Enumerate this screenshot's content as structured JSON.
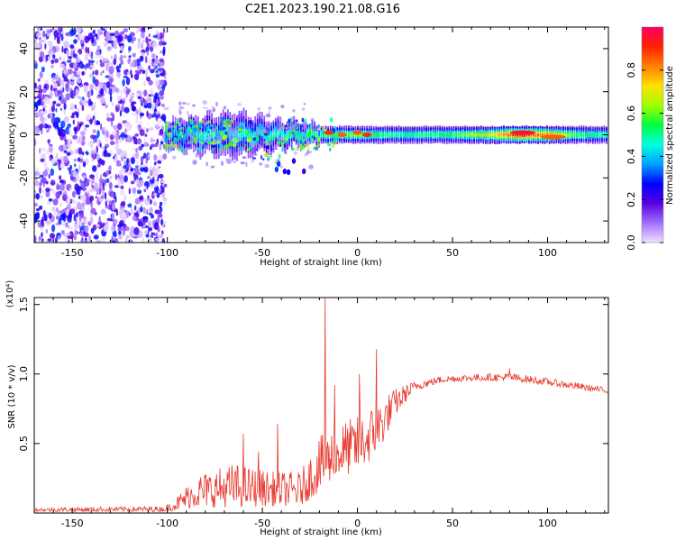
{
  "title": "C2E1.2023.190.21.08.G16",
  "chart_data": [
    {
      "type": "heatmap",
      "name": "spectrogram",
      "xlabel": "Height of straight line (km)",
      "ylabel": "Frequency (Hz)",
      "xlim": [
        -170,
        132
      ],
      "ylim": [
        -50,
        50
      ],
      "xticks": [
        -150,
        -100,
        -50,
        0,
        50,
        100
      ],
      "yticks": [
        -40,
        -20,
        0,
        20,
        40
      ],
      "colorbar": {
        "label": "Normalized spectral amplitude",
        "range": [
          0,
          1
        ],
        "ticks": [
          0.0,
          0.2,
          0.4,
          0.6,
          0.8
        ],
        "colors": [
          "#f0e0ff",
          "#a070ff",
          "#5a00e0",
          "#0000ff",
          "#00a0ff",
          "#00ffe0",
          "#00ff40",
          "#a0ff00",
          "#ffe000",
          "#ff8000",
          "#ff2000",
          "#ff0060"
        ]
      },
      "features": {
        "noise_region_x": [
          -170,
          -101
        ],
        "signal_band_center_hz": 0,
        "signal_band_halfwidth_hz": [
          {
            "x": -100,
            "v": 5
          },
          {
            "x": -65,
            "v": 8
          },
          {
            "x": -40,
            "v": 5
          },
          {
            "x": -20,
            "v": 3
          },
          {
            "x": 20,
            "v": 3
          },
          {
            "x": 60,
            "v": 3
          },
          {
            "x": 100,
            "v": 3
          },
          {
            "x": 130,
            "v": 3
          }
        ],
        "signal_amplitude": [
          {
            "x": -100,
            "v": 0.35
          },
          {
            "x": -80,
            "v": 0.45
          },
          {
            "x": -50,
            "v": 0.45
          },
          {
            "x": -20,
            "v": 0.55
          },
          {
            "x": 0,
            "v": 0.6
          },
          {
            "x": 20,
            "v": 0.5
          },
          {
            "x": 50,
            "v": 0.55
          },
          {
            "x": 70,
            "v": 0.7
          },
          {
            "x": 85,
            "v": 0.95
          },
          {
            "x": 100,
            "v": 0.8
          },
          {
            "x": 115,
            "v": 0.55
          },
          {
            "x": 130,
            "v": 0.5
          }
        ],
        "peak_spots": [
          {
            "x": -15,
            "f": 1,
            "v": 0.9
          },
          {
            "x": -8,
            "f": 0,
            "v": 0.85
          },
          {
            "x": 0,
            "f": 1,
            "v": 0.85
          },
          {
            "x": 5,
            "f": 0,
            "v": 0.9
          },
          {
            "x": 87,
            "f": 1,
            "v": 0.95
          },
          {
            "x": 103,
            "f": -1,
            "v": 0.85
          }
        ]
      }
    },
    {
      "type": "line",
      "name": "snr",
      "xlabel": "Height of straight line (km)",
      "ylabel": "SNR (10 * v/v)",
      "multiplier": "(x10⁴)",
      "xlim": [
        -170,
        132
      ],
      "ylim": [
        0.0,
        1.55
      ],
      "xticks": [
        -150,
        -100,
        -50,
        0,
        50,
        100
      ],
      "yticks": [
        0.5,
        1.0,
        1.5
      ],
      "series": [
        {
          "color": "#e8382e",
          "envelope": [
            {
              "x": -170,
              "lo": 0.01,
              "hi": 0.04
            },
            {
              "x": -101,
              "lo": 0.01,
              "hi": 0.05
            },
            {
              "x": -95,
              "lo": 0.02,
              "hi": 0.12
            },
            {
              "x": -85,
              "lo": 0.04,
              "hi": 0.28
            },
            {
              "x": -65,
              "lo": 0.04,
              "hi": 0.36
            },
            {
              "x": -45,
              "lo": 0.05,
              "hi": 0.3
            },
            {
              "x": -30,
              "lo": 0.05,
              "hi": 0.3
            },
            {
              "x": -20,
              "lo": 0.15,
              "hi": 0.55
            },
            {
              "x": -10,
              "lo": 0.25,
              "hi": 0.65
            },
            {
              "x": 0,
              "lo": 0.3,
              "hi": 0.7
            },
            {
              "x": 10,
              "lo": 0.4,
              "hi": 0.8
            },
            {
              "x": 20,
              "lo": 0.7,
              "hi": 0.9
            },
            {
              "x": 30,
              "lo": 0.88,
              "hi": 0.95
            },
            {
              "x": 45,
              "lo": 0.94,
              "hi": 0.99
            },
            {
              "x": 60,
              "lo": 0.95,
              "hi": 1.0
            },
            {
              "x": 80,
              "lo": 0.95,
              "hi": 1.01
            },
            {
              "x": 100,
              "lo": 0.92,
              "hi": 0.97
            },
            {
              "x": 115,
              "lo": 0.89,
              "hi": 0.94
            },
            {
              "x": 132,
              "lo": 0.86,
              "hi": 0.9
            }
          ],
          "spikes": [
            {
              "x": -60,
              "y": 0.57
            },
            {
              "x": -52,
              "y": 0.44
            },
            {
              "x": -42,
              "y": 0.64
            },
            {
              "x": -17,
              "y": 1.55
            },
            {
              "x": -12,
              "y": 0.92
            },
            {
              "x": 1,
              "y": 1.0
            },
            {
              "x": 10,
              "y": 1.18
            },
            {
              "x": 80,
              "y": 1.04
            }
          ]
        }
      ]
    }
  ]
}
